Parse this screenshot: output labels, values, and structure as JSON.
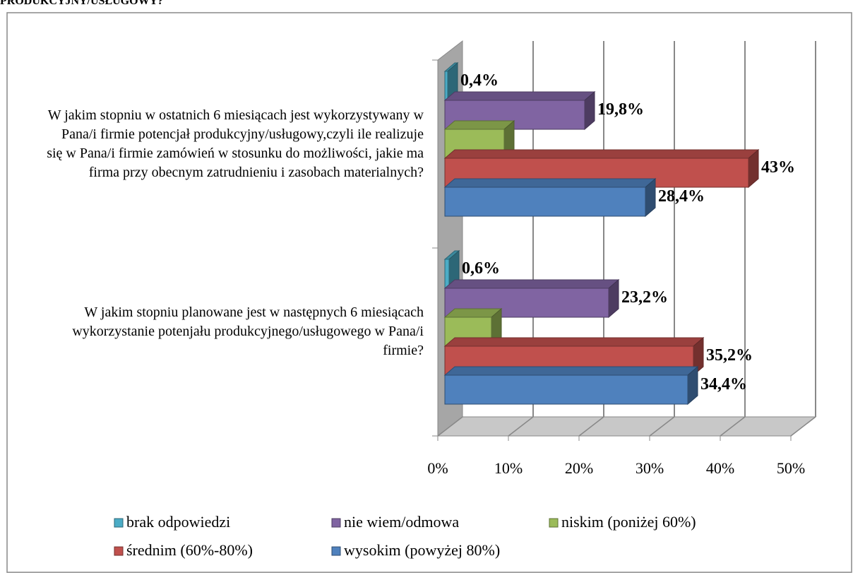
{
  "heading": "PRODUKCYJNY/USŁUGOWY?",
  "chart_data": {
    "type": "bar3d",
    "orientation": "horizontal",
    "categories": [
      "W jakim stopniu w ostatnich 6 miesiącach jest wykorzystywany w Pana/i firmie potencjał produkcyjny/usługowy,czyli ile realizuje się w Pana/i firmie zamówień w stosunku do możliwości, jakie ma firma przy obecnym zatrudnieniu i zasobach materialnych?",
      "W jakim stopniu planowane jest w następnych 6 miesiącach wykorzystanie potenjału produkcyjnego/usługowego w Pana/i firmie?"
    ],
    "series": [
      {
        "name": "brak odpowiedzi",
        "color": "#4bacc6",
        "values": [
          0.4,
          0.6
        ],
        "value_labels": [
          "0,4%",
          "0,6%"
        ]
      },
      {
        "name": "nie wiem/odmowa",
        "color": "#8064a2",
        "values": [
          19.8,
          23.2
        ],
        "value_labels": [
          "19,8%",
          "23,2%"
        ]
      },
      {
        "name": "niskim (poniżej 60%)",
        "color": "#9bbb59",
        "values": [
          8.4,
          6.6
        ]
      },
      {
        "name": "średnim (60%-80%)",
        "color": "#c0504d",
        "values": [
          43,
          35.2
        ],
        "value_labels": [
          "43%",
          "35,2%"
        ]
      },
      {
        "name": "wysokim (powyżej 80%)",
        "color": "#4f81bd",
        "values": [
          28.4,
          34.4
        ],
        "value_labels": [
          "28,4%",
          "34,4%"
        ]
      }
    ],
    "xlim": [
      0,
      50
    ],
    "xticks": [
      {
        "value": 0,
        "label": "0%"
      },
      {
        "value": 10,
        "label": "10%"
      },
      {
        "value": 20,
        "label": "20%"
      },
      {
        "value": 30,
        "label": "30%"
      },
      {
        "value": 40,
        "label": "40%"
      },
      {
        "value": 50,
        "label": "50%"
      }
    ],
    "grid": true,
    "legend": "bottom"
  }
}
